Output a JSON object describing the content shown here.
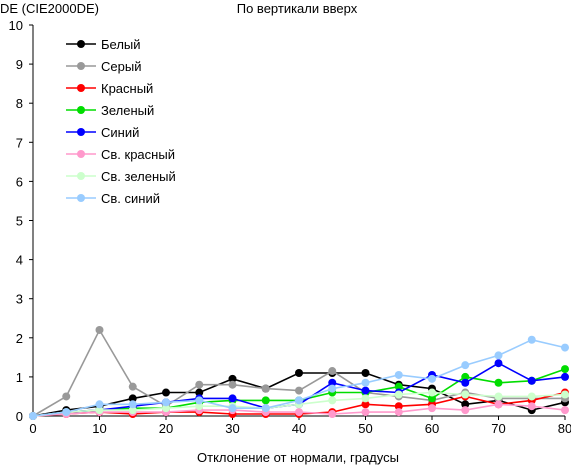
{
  "chart_data": {
    "type": "line",
    "title": "По вертикали вверх",
    "ylabel": "DE (CIE2000DE)",
    "xlabel": "Отклонение от нормали, градусы",
    "xlim": [
      0,
      80
    ],
    "ylim": [
      0,
      10
    ],
    "x_ticks": [
      "0",
      "10",
      "20",
      "30",
      "40",
      "50",
      "60",
      "70",
      "80"
    ],
    "y_ticks": [
      "0",
      "1",
      "2",
      "3",
      "4",
      "5",
      "6",
      "7",
      "8",
      "9",
      "10"
    ],
    "grid": false,
    "legend_position": "top-left",
    "x": [
      0,
      5,
      10,
      15,
      20,
      25,
      30,
      35,
      40,
      45,
      50,
      55,
      60,
      65,
      70,
      75,
      80
    ],
    "series": [
      {
        "name": "Белый",
        "color": "#000000",
        "values": [
          0.0,
          0.15,
          0.25,
          0.45,
          0.6,
          0.6,
          0.95,
          0.7,
          1.1,
          1.1,
          1.1,
          0.8,
          0.7,
          0.3,
          0.4,
          0.15,
          0.35
        ]
      },
      {
        "name": "Серый",
        "color": "#999999",
        "values": [
          0.0,
          0.5,
          2.2,
          0.75,
          0.25,
          0.8,
          0.8,
          0.7,
          0.65,
          1.15,
          0.6,
          0.5,
          0.4,
          0.6,
          0.45,
          0.45,
          0.45
        ]
      },
      {
        "name": "Красный",
        "color": "#ff0000",
        "values": [
          0.0,
          0.05,
          0.1,
          0.05,
          0.1,
          0.1,
          0.05,
          0.05,
          0.05,
          0.1,
          0.3,
          0.25,
          0.3,
          0.5,
          0.3,
          0.4,
          0.6
        ]
      },
      {
        "name": "Зеленый",
        "color": "#00dd00",
        "values": [
          0.0,
          0.1,
          0.15,
          0.2,
          0.2,
          0.35,
          0.4,
          0.4,
          0.4,
          0.6,
          0.6,
          0.75,
          0.45,
          1.0,
          0.85,
          0.9,
          1.2
        ]
      },
      {
        "name": "Синий",
        "color": "#0000ff",
        "values": [
          0.0,
          0.1,
          0.15,
          0.25,
          0.35,
          0.45,
          0.45,
          0.2,
          0.3,
          0.85,
          0.65,
          0.6,
          1.05,
          0.85,
          1.35,
          0.9,
          1.0
        ]
      },
      {
        "name": "Св. красный",
        "color": "#ff99cc",
        "values": [
          0.0,
          0.05,
          0.1,
          0.1,
          0.1,
          0.15,
          0.15,
          0.1,
          0.1,
          0.05,
          0.1,
          0.1,
          0.2,
          0.15,
          0.3,
          0.25,
          0.15
        ]
      },
      {
        "name": "Св. зеленый",
        "color": "#ccffcc",
        "values": [
          0.0,
          0.1,
          0.15,
          0.15,
          0.2,
          0.25,
          0.25,
          0.2,
          0.3,
          0.4,
          0.45,
          0.55,
          0.6,
          0.55,
          0.5,
          0.5,
          0.55
        ]
      },
      {
        "name": "Св. синий",
        "color": "#99ccff",
        "values": [
          0.0,
          0.1,
          0.3,
          0.3,
          0.35,
          0.4,
          0.2,
          0.2,
          0.4,
          0.7,
          0.85,
          1.05,
          0.95,
          1.3,
          1.55,
          1.95,
          1.75
        ]
      }
    ]
  }
}
